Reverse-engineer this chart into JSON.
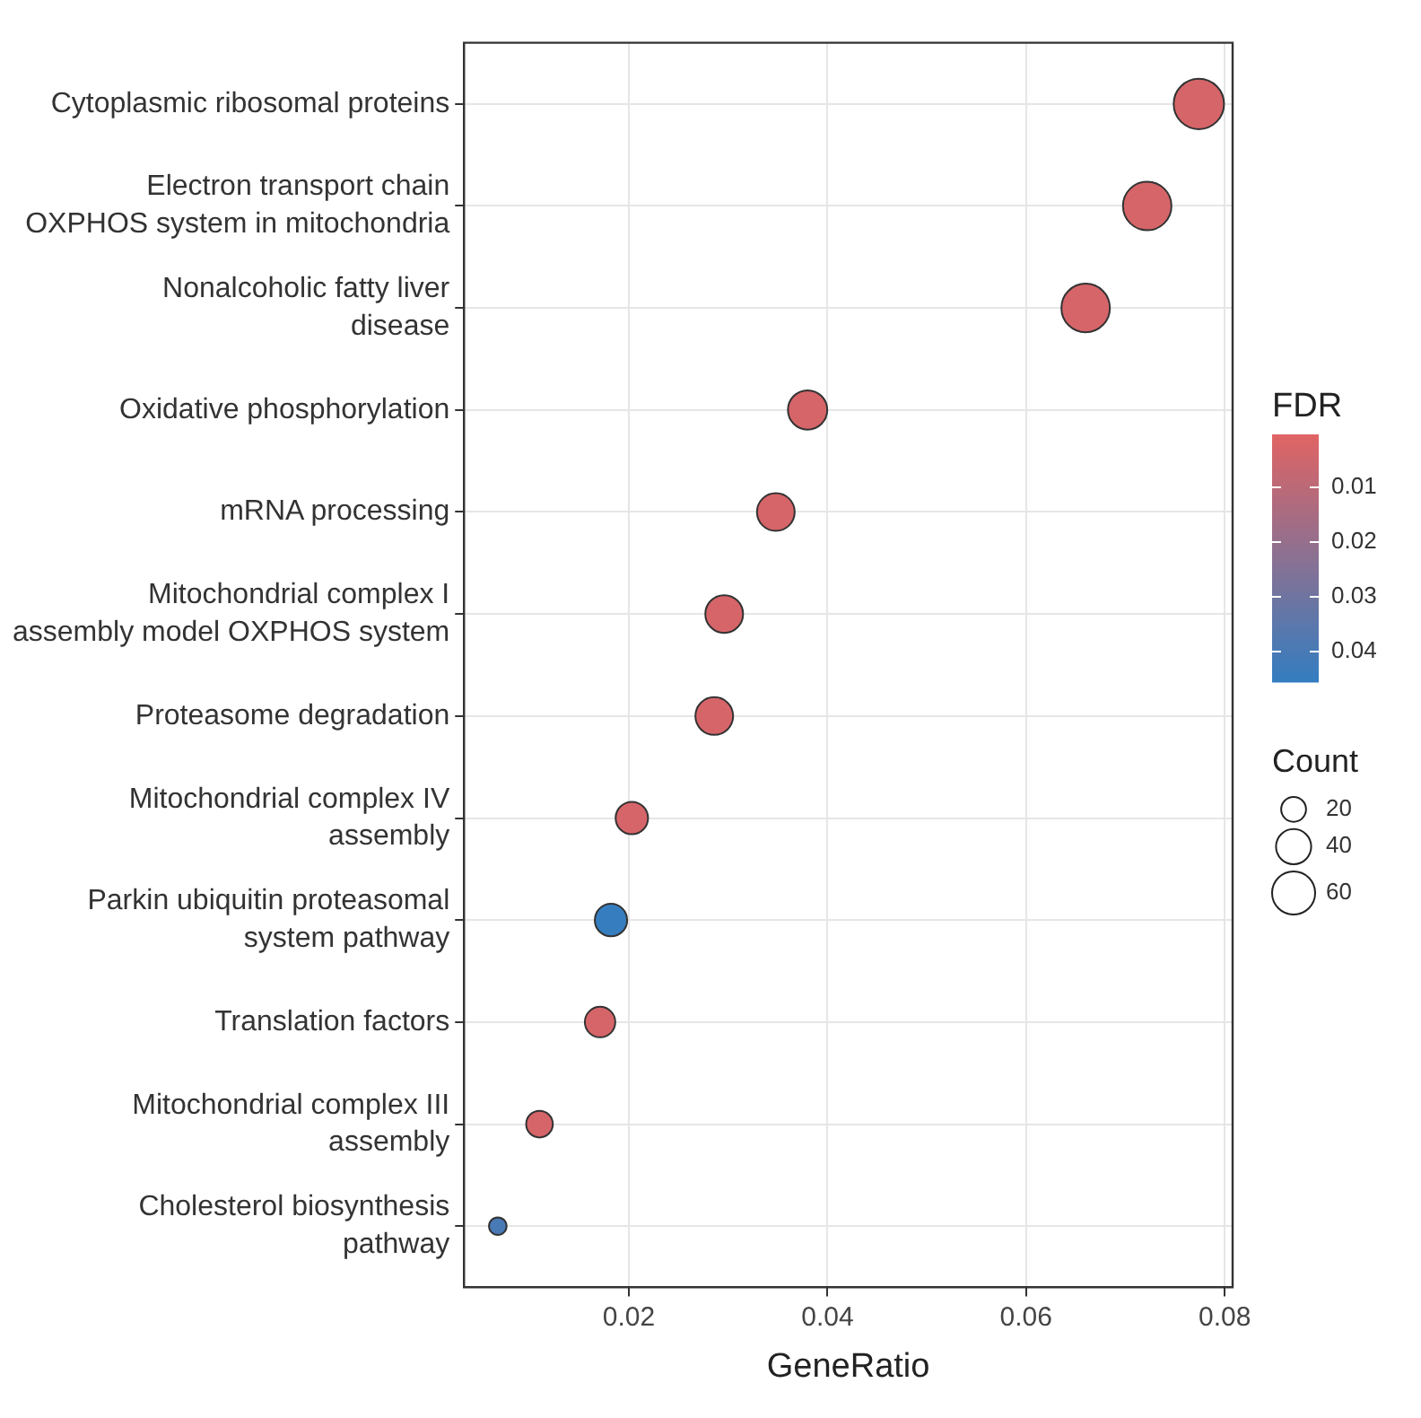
{
  "chart_data": {
    "type": "bubble",
    "orientation": "horizontal",
    "categories": [
      "Cytoplasmic ribosomal proteins",
      "Electron transport chain OXPHOS system in mitochondria",
      "Nonalcoholic fatty liver disease",
      "Oxidative phosphorylation",
      "mRNA processing",
      "Mitochondrial complex I assembly model OXPHOS system",
      "Proteasome degradation",
      "Mitochondrial complex IV assembly",
      "Parkin ubiquitin proteasomal system pathway",
      "Translation factors",
      "Mitochondrial complex III assembly",
      "Cholesterol biosynthesis pathway"
    ],
    "values": [
      0.0774,
      0.0722,
      0.066,
      0.038,
      0.0348,
      0.0296,
      0.0286,
      0.0203,
      0.0182,
      0.0171,
      0.011,
      0.0068
    ],
    "sizes": [
      82,
      76,
      76,
      50,
      46,
      46,
      46,
      34,
      34,
      30,
      23,
      10
    ],
    "cvalues": [
      0.003,
      0.003,
      0.003,
      0.003,
      0.003,
      0.003,
      0.003,
      0.003,
      0.045,
      0.003,
      0.003,
      0.04
    ],
    "clim": [
      0.0003,
      0.0456
    ],
    "cticks": [
      0.01,
      0.02,
      0.03,
      0.04
    ],
    "clabel": "FDR",
    "size_legend": [
      20,
      40,
      60
    ],
    "legend_title": "Count",
    "xlabel": "GeneRatio",
    "xlim": [
      0.0034,
      0.0808
    ],
    "xticks": [
      0.02,
      0.04,
      0.06,
      0.08
    ],
    "grid": true
  }
}
